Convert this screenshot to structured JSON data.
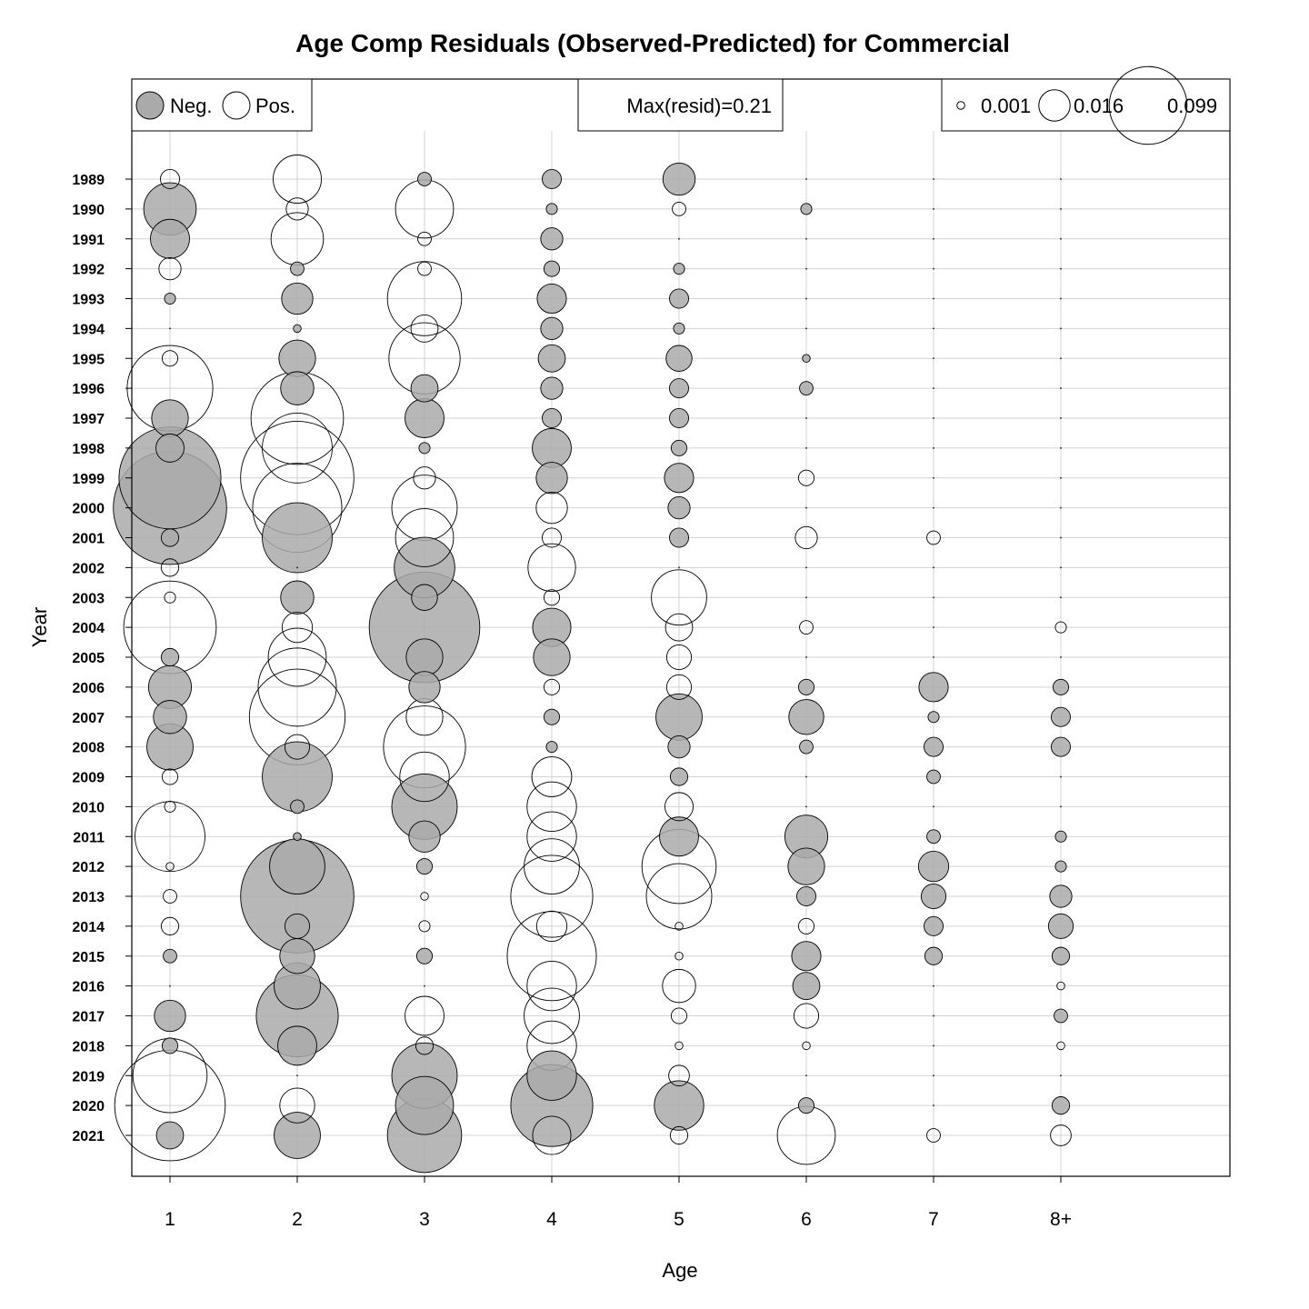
{
  "chart_data": {
    "type": "bubble",
    "title": "Age Comp Residuals (Observed-Predicted) for Commercial",
    "xlabel": "Age",
    "ylabel": "Year",
    "ages": [
      "1",
      "2",
      "3",
      "4",
      "5",
      "6",
      "7",
      "8+"
    ],
    "years": [
      "1989",
      "1990",
      "1991",
      "1992",
      "1993",
      "1994",
      "1995",
      "1996",
      "1997",
      "1998",
      "1999",
      "2000",
      "2001",
      "2002",
      "2003",
      "2004",
      "2005",
      "2006",
      "2007",
      "2008",
      "2009",
      "2010",
      "2011",
      "2012",
      "2013",
      "2014",
      "2015",
      "2016",
      "2017",
      "2018",
      "2019",
      "2020",
      "2021"
    ],
    "legend": {
      "sign_labels": [
        "Neg.",
        "Pos."
      ],
      "max_label": "Max(resid)=0.21",
      "max_value": 0.21,
      "size_labels": [
        "0.001",
        "0.016",
        "0.099"
      ],
      "size_values": [
        0.001,
        0.016,
        0.099
      ]
    },
    "colors": {
      "negative": "#aaaaaa",
      "positive": "#ffffff",
      "grid": "#d3d3d3"
    },
    "grid": true,
    "residuals": [
      [
        0.006,
        0.038,
        -0.003,
        -0.006,
        -0.017,
        0,
        0,
        0
      ],
      [
        -0.045,
        0.008,
        0.055,
        -0.002,
        0.003,
        -0.002,
        0,
        0
      ],
      [
        -0.025,
        0.045,
        0.003,
        -0.008,
        0,
        0,
        0,
        0
      ],
      [
        0.008,
        -0.003,
        0.003,
        -0.004,
        -0.002,
        0,
        0,
        0
      ],
      [
        -0.002,
        -0.016,
        0.09,
        -0.014,
        -0.006,
        0,
        0,
        0
      ],
      [
        0,
        -0.001,
        0.012,
        -0.008,
        -0.002,
        0,
        0,
        0
      ],
      [
        0.004,
        -0.022,
        0.083,
        -0.012,
        -0.011,
        -0.001,
        0,
        0
      ],
      [
        0.12,
        -0.018,
        -0.012,
        -0.008,
        -0.006,
        -0.003,
        0,
        0
      ],
      [
        -0.022,
        0.14,
        -0.025,
        -0.006,
        -0.006,
        0,
        0,
        0
      ],
      [
        -0.013,
        0.08,
        -0.002,
        -0.025,
        -0.004,
        0,
        0,
        0
      ],
      [
        -0.17,
        0.21,
        0.008,
        -0.016,
        -0.014,
        0.004,
        0,
        0
      ],
      [
        -0.21,
        0.13,
        0.07,
        0.016,
        -0.008,
        0,
        0,
        0
      ],
      [
        -0.005,
        -0.08,
        0.055,
        0.006,
        -0.006,
        0.008,
        0.003,
        0
      ],
      [
        0.005,
        0,
        -0.06,
        0.037,
        0,
        0,
        0,
        0
      ],
      [
        0.002,
        -0.018,
        -0.011,
        0.004,
        0.05,
        0,
        0,
        0
      ],
      [
        0.14,
        0.015,
        -0.2,
        -0.024,
        0.012,
        0.003,
        0,
        0.002
      ],
      [
        -0.005,
        0.055,
        -0.022,
        -0.022,
        0.01,
        0,
        0,
        0
      ],
      [
        -0.03,
        0.1,
        -0.016,
        0.004,
        0.01,
        -0.004,
        -0.014,
        -0.004
      ],
      [
        -0.018,
        0.15,
        0.022,
        -0.004,
        -0.035,
        -0.02,
        -0.002,
        -0.006
      ],
      [
        -0.035,
        0.01,
        0.11,
        -0.002,
        -0.008,
        -0.003,
        -0.006,
        -0.006
      ],
      [
        0.004,
        -0.08,
        0.04,
        0.026,
        -0.005,
        0,
        -0.003,
        0
      ],
      [
        0.002,
        -0.003,
        -0.07,
        0.04,
        0.013,
        0,
        0,
        0
      ],
      [
        0.08,
        -0.001,
        -0.016,
        0.04,
        -0.025,
        -0.03,
        -0.003,
        -0.002
      ],
      [
        0.001,
        -0.05,
        -0.004,
        0.05,
        0.09,
        -0.022,
        -0.015,
        -0.002
      ],
      [
        0.003,
        -0.21,
        0.001,
        0.11,
        0.07,
        -0.006,
        -0.01,
        -0.008
      ],
      [
        0.005,
        -0.01,
        0.002,
        0.015,
        0.001,
        0.004,
        -0.006,
        -0.01
      ],
      [
        -0.003,
        -0.02,
        -0.004,
        0.13,
        0.001,
        -0.014,
        -0.005,
        -0.005
      ],
      [
        0,
        -0.035,
        0,
        0.04,
        0.018,
        -0.012,
        0,
        0.001
      ],
      [
        -0.016,
        -0.11,
        0.025,
        0.05,
        0.004,
        0.01,
        0,
        -0.003
      ],
      [
        -0.004,
        -0.025,
        0.005,
        0.04,
        0.001,
        0.001,
        0,
        0.001
      ],
      [
        0.09,
        0,
        -0.07,
        -0.04,
        0.007,
        0,
        0,
        0
      ],
      [
        0.2,
        0.02,
        -0.055,
        -0.11,
        -0.04,
        -0.004,
        0,
        -0.005
      ],
      [
        -0.012,
        -0.035,
        -0.09,
        0.024,
        0.005,
        0.055,
        0.003,
        0.007
      ]
    ]
  }
}
